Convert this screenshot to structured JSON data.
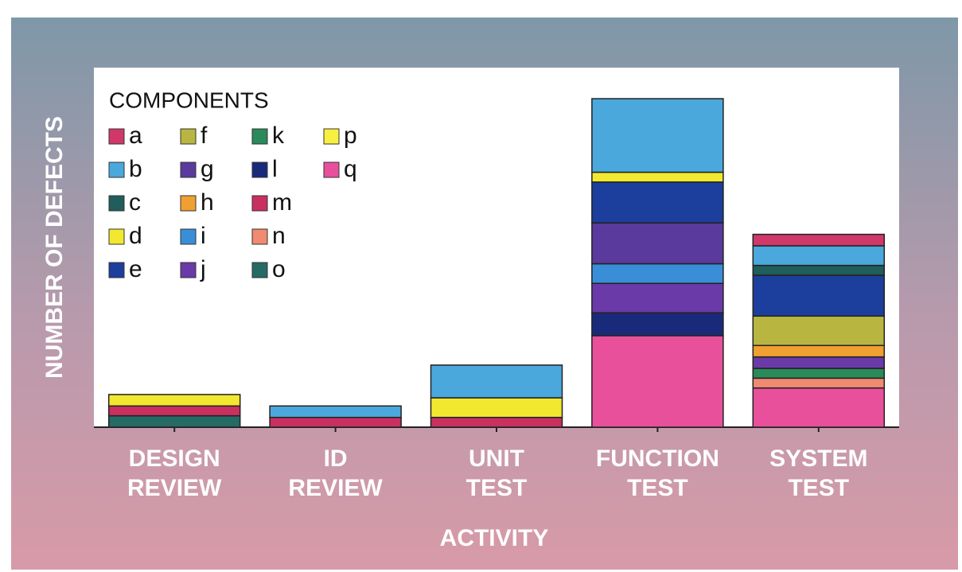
{
  "chart_data": {
    "type": "stacked_bar",
    "xlabel": "ACTIVITY",
    "ylabel": "NUMBER OF DEFECTS",
    "legend_title": "COMPONENTS",
    "categories": [
      "DESIGN REVIEW",
      "ID REVIEW",
      "UNIT TEST",
      "FUNCTION TEST",
      "SYSTEM TEST"
    ],
    "ylim": [
      0,
      110
    ],
    "series": [
      {
        "name": "a",
        "color": "#d0386a",
        "values": [
          null,
          null,
          null,
          null,
          3.5
        ]
      },
      {
        "name": "b",
        "color": "#4aa8dc",
        "values": [
          null,
          3.5,
          10,
          22.5,
          6
        ]
      },
      {
        "name": "c",
        "color": "#1f5e5a",
        "values": [
          null,
          null,
          null,
          null,
          3
        ]
      },
      {
        "name": "d",
        "color": "#f2e830",
        "values": [
          3.5,
          null,
          6,
          3,
          null
        ]
      },
      {
        "name": "e",
        "color": "#1c3e9c",
        "values": [
          null,
          null,
          null,
          12.5,
          12.5
        ]
      },
      {
        "name": "f",
        "color": "#b8b640",
        "values": [
          null,
          null,
          null,
          null,
          9
        ]
      },
      {
        "name": "g",
        "color": "#5a3a9c",
        "values": [
          null,
          null,
          null,
          12.5,
          null
        ]
      },
      {
        "name": "h",
        "color": "#f0a030",
        "values": [
          null,
          null,
          null,
          null,
          3.5
        ]
      },
      {
        "name": "i",
        "color": "#3a8ed8",
        "values": [
          null,
          null,
          null,
          6,
          null
        ]
      },
      {
        "name": "j",
        "color": "#6a3aa8",
        "values": [
          null,
          null,
          null,
          9,
          3.5
        ]
      },
      {
        "name": "k",
        "color": "#2a8a5a",
        "values": [
          null,
          null,
          null,
          null,
          3
        ]
      },
      {
        "name": "l",
        "color": "#1a2a7a",
        "values": [
          null,
          null,
          null,
          7,
          null
        ]
      },
      {
        "name": "m",
        "color": "#c83060",
        "values": [
          3,
          3,
          3,
          null,
          null
        ]
      },
      {
        "name": "n",
        "color": "#f08a70",
        "values": [
          null,
          null,
          null,
          null,
          3
        ]
      },
      {
        "name": "o",
        "color": "#266a66",
        "values": [
          3.5,
          null,
          null,
          null,
          null
        ]
      },
      {
        "name": "p",
        "color": "#f8f040",
        "values": [
          null,
          null,
          null,
          null,
          null
        ]
      },
      {
        "name": "q",
        "color": "#e8509c",
        "values": [
          null,
          null,
          null,
          28,
          12
        ]
      }
    ]
  }
}
